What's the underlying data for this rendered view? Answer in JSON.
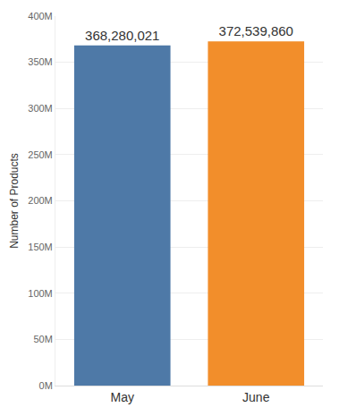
{
  "chart_data": {
    "type": "bar",
    "y_label": "Number of Products",
    "categories": [
      "May",
      "June"
    ],
    "values": [
      368280021,
      372539860
    ],
    "value_labels": [
      "368,280,021",
      "372,539,860"
    ],
    "colors": [
      "#4e79a7",
      "#f28e2b"
    ],
    "ylim": [
      0,
      400000000
    ],
    "yticks": [
      {
        "value": 0,
        "label": "0M"
      },
      {
        "value": 50000000,
        "label": "50M"
      },
      {
        "value": 100000000,
        "label": "100M"
      },
      {
        "value": 150000000,
        "label": "150M"
      },
      {
        "value": 200000000,
        "label": "200M"
      },
      {
        "value": 250000000,
        "label": "250M"
      },
      {
        "value": 300000000,
        "label": "300M"
      },
      {
        "value": 350000000,
        "label": "350M"
      },
      {
        "value": 400000000,
        "label": "400M"
      }
    ],
    "grid": true,
    "data_labels": true
  }
}
